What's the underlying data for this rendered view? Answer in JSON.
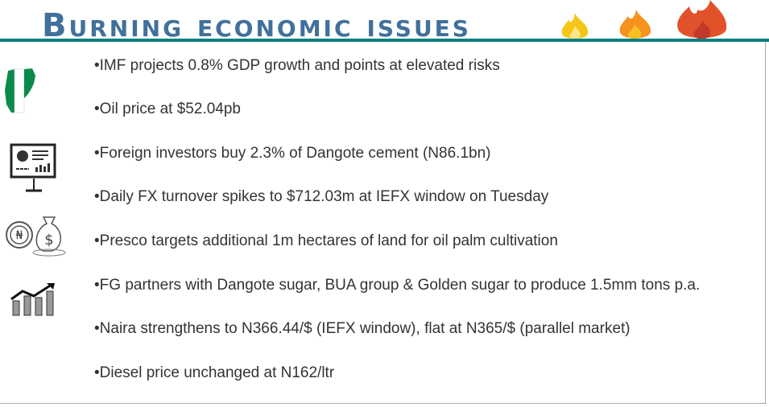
{
  "title": "Burning economic issues",
  "colors": {
    "title": "#41709b",
    "rule": "#0a8080",
    "text": "#333333"
  },
  "icons": [
    "flame-yellow-icon",
    "flame-orange-icon",
    "flame-red-icon",
    "nigeria-map-icon",
    "presentation-chart-icon",
    "naira-coin-money-bag-icon",
    "growth-bar-chart-icon"
  ],
  "items": [
    "•IMF projects 0.8% GDP growth and points at elevated risks",
    "•Oil price at $52.04pb",
    "•Foreign investors buy 2.3% of Dangote cement (N86.1bn)",
    "•Daily FX turnover spikes to $712.03m at IEFX window on Tuesday",
    "•Presco targets additional 1m hectares of land for oil palm cultivation",
    "•FG partners with Dangote sugar, BUA group & Golden sugar to produce 1.5mm tons p.a.",
    "•Naira strengthens to N366.44/$ (IEFX window), flat at N365/$ (parallel market)",
    "•Diesel price unchanged at N162/ltr"
  ]
}
